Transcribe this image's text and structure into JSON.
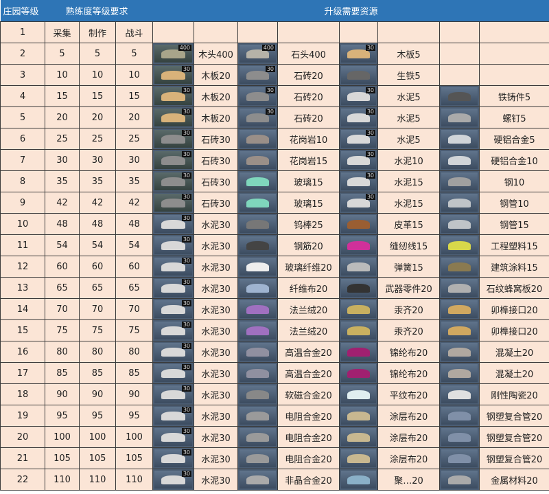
{
  "header": {
    "level": "庄园等级",
    "proficiency": "熟练度等级要求",
    "resources": "升级需要资源"
  },
  "subheader": {
    "level": "1",
    "gather": "采集",
    "craft": "制作",
    "combat": "战斗"
  },
  "rows": [
    {
      "level": "2",
      "gather": "5",
      "craft": "5",
      "combat": "5",
      "res": [
        {
          "icon": "wood-log-icon",
          "label": "木头400",
          "badge": "400"
        },
        {
          "icon": "stone-icon",
          "label": "石头400",
          "badge": "400"
        },
        {
          "icon": "wood-plank-icon",
          "label": "木板5",
          "badge": "30"
        }
      ]
    },
    {
      "level": "3",
      "gather": "10",
      "craft": "10",
      "combat": "10",
      "res": [
        {
          "icon": "wood-plank-icon",
          "label": "木板20",
          "badge": "30"
        },
        {
          "icon": "stone-brick-icon",
          "label": "石砖20",
          "badge": "30"
        },
        {
          "icon": "pig-iron-icon",
          "label": "生铁5"
        }
      ]
    },
    {
      "level": "4",
      "gather": "15",
      "craft": "15",
      "combat": "15",
      "res": [
        {
          "icon": "wood-plank-icon",
          "label": "木板20",
          "badge": "30"
        },
        {
          "icon": "stone-brick-icon",
          "label": "石砖20",
          "badge": "30"
        },
        {
          "icon": "cement-icon",
          "label": "水泥5",
          "badge": "30"
        },
        {
          "icon": "iron-casting-icon",
          "label": "铁铸件5"
        }
      ]
    },
    {
      "level": "5",
      "gather": "20",
      "craft": "20",
      "combat": "20",
      "res": [
        {
          "icon": "wood-plank-icon",
          "label": "木板20",
          "badge": "30"
        },
        {
          "icon": "stone-brick-icon",
          "label": "石砖20",
          "badge": "30"
        },
        {
          "icon": "cement-icon",
          "label": "水泥5",
          "badge": "30"
        },
        {
          "icon": "screw-icon",
          "label": "螺钉5"
        }
      ]
    },
    {
      "level": "6",
      "gather": "25",
      "craft": "25",
      "combat": "25",
      "res": [
        {
          "icon": "stone-brick-icon",
          "label": "石砖30",
          "badge": "30"
        },
        {
          "icon": "granite-icon",
          "label": "花岗岩10"
        },
        {
          "icon": "cement-icon",
          "label": "水泥5",
          "badge": "30"
        },
        {
          "icon": "duralumin-icon",
          "label": "硬铝合金5"
        }
      ]
    },
    {
      "level": "7",
      "gather": "30",
      "craft": "30",
      "combat": "30",
      "res": [
        {
          "icon": "stone-brick-icon",
          "label": "石砖30",
          "badge": "30"
        },
        {
          "icon": "granite-icon",
          "label": "花岗岩15"
        },
        {
          "icon": "cement-icon",
          "label": "水泥10",
          "badge": "30"
        },
        {
          "icon": "duralumin-icon",
          "label": "硬铝合金10"
        }
      ]
    },
    {
      "level": "8",
      "gather": "35",
      "craft": "35",
      "combat": "35",
      "res": [
        {
          "icon": "stone-brick-icon",
          "label": "石砖30",
          "badge": "30"
        },
        {
          "icon": "glass-icon",
          "label": "玻璃15"
        },
        {
          "icon": "cement-icon",
          "label": "水泥15",
          "badge": "30"
        },
        {
          "icon": "steel-icon",
          "label": "钢10"
        }
      ]
    },
    {
      "level": "9",
      "gather": "42",
      "craft": "42",
      "combat": "42",
      "res": [
        {
          "icon": "stone-brick-icon",
          "label": "石砖30",
          "badge": "30"
        },
        {
          "icon": "glass-icon",
          "label": "玻璃15"
        },
        {
          "icon": "cement-icon",
          "label": "水泥15",
          "badge": "30"
        },
        {
          "icon": "steel-pipe-icon",
          "label": "钢管10"
        }
      ]
    },
    {
      "level": "10",
      "gather": "48",
      "craft": "48",
      "combat": "48",
      "res": [
        {
          "icon": "cement-icon",
          "label": "水泥30",
          "badge": "30"
        },
        {
          "icon": "tungsten-rod-icon",
          "label": "钨棒25"
        },
        {
          "icon": "leather-icon",
          "label": "皮革15"
        },
        {
          "icon": "steel-pipe-icon",
          "label": "钢管15"
        }
      ]
    },
    {
      "level": "11",
      "gather": "54",
      "craft": "54",
      "combat": "54",
      "res": [
        {
          "icon": "cement-icon",
          "label": "水泥30",
          "badge": "30"
        },
        {
          "icon": "rebar-icon",
          "label": "钢筋20"
        },
        {
          "icon": "thread-icon",
          "label": "缝纫线15"
        },
        {
          "icon": "plastic-icon",
          "label": "工程塑料15"
        }
      ]
    },
    {
      "level": "12",
      "gather": "60",
      "craft": "60",
      "combat": "60",
      "res": [
        {
          "icon": "cement-icon",
          "label": "水泥30",
          "badge": "30"
        },
        {
          "icon": "fiberglass-icon",
          "label": "玻璃纤维20"
        },
        {
          "icon": "spring-icon",
          "label": "弹簧15"
        },
        {
          "icon": "paint-icon",
          "label": "建筑涂料15"
        }
      ]
    },
    {
      "level": "13",
      "gather": "65",
      "craft": "65",
      "combat": "65",
      "res": [
        {
          "icon": "cement-icon",
          "label": "水泥30",
          "badge": "30"
        },
        {
          "icon": "fiber-cloth-icon",
          "label": "纤维布20"
        },
        {
          "icon": "weapon-parts-icon",
          "label": "武器零件20"
        },
        {
          "icon": "honeycomb-panel-icon",
          "label": "石纹蜂窝板20"
        }
      ]
    },
    {
      "level": "14",
      "gather": "70",
      "craft": "70",
      "combat": "70",
      "res": [
        {
          "icon": "cement-icon",
          "label": "水泥30",
          "badge": "30"
        },
        {
          "icon": "flannel-icon",
          "label": "法兰绒20"
        },
        {
          "icon": "amalgam-icon",
          "label": "汞齐20"
        },
        {
          "icon": "joint-icon",
          "label": "卯榫接口20"
        }
      ]
    },
    {
      "level": "15",
      "gather": "75",
      "craft": "75",
      "combat": "75",
      "res": [
        {
          "icon": "cement-icon",
          "label": "水泥30",
          "badge": "30"
        },
        {
          "icon": "flannel-icon",
          "label": "法兰绒20"
        },
        {
          "icon": "amalgam-icon",
          "label": "汞齐20"
        },
        {
          "icon": "joint-icon",
          "label": "卯榫接口20"
        }
      ]
    },
    {
      "level": "16",
      "gather": "80",
      "craft": "80",
      "combat": "80",
      "res": [
        {
          "icon": "cement-icon",
          "label": "水泥30",
          "badge": "30"
        },
        {
          "icon": "superalloy-icon",
          "label": "高温合金20"
        },
        {
          "icon": "nylon-cloth-icon",
          "label": "锦纶布20"
        },
        {
          "icon": "concrete-icon",
          "label": "混凝土20"
        }
      ]
    },
    {
      "level": "17",
      "gather": "85",
      "craft": "85",
      "combat": "85",
      "res": [
        {
          "icon": "cement-icon",
          "label": "水泥30",
          "badge": "30"
        },
        {
          "icon": "superalloy-icon",
          "label": "高温合金20"
        },
        {
          "icon": "nylon-cloth-icon",
          "label": "锦纶布20"
        },
        {
          "icon": "concrete-icon",
          "label": "混凝土20"
        }
      ]
    },
    {
      "level": "18",
      "gather": "90",
      "craft": "90",
      "combat": "90",
      "res": [
        {
          "icon": "cement-icon",
          "label": "水泥30",
          "badge": "30"
        },
        {
          "icon": "soft-magnetic-alloy-icon",
          "label": "软磁合金20"
        },
        {
          "icon": "plain-cloth-icon",
          "label": "平纹布20"
        },
        {
          "icon": "ceramic-icon",
          "label": "刚性陶瓷20"
        }
      ]
    },
    {
      "level": "19",
      "gather": "95",
      "craft": "95",
      "combat": "95",
      "res": [
        {
          "icon": "cement-icon",
          "label": "水泥30",
          "badge": "30"
        },
        {
          "icon": "resistance-alloy-icon",
          "label": "电阻合金20"
        },
        {
          "icon": "coated-cloth-icon",
          "label": "涂层布20"
        },
        {
          "icon": "composite-pipe-icon",
          "label": "钢塑复合管20"
        }
      ]
    },
    {
      "level": "20",
      "gather": "100",
      "craft": "100",
      "combat": "100",
      "res": [
        {
          "icon": "cement-icon",
          "label": "水泥30",
          "badge": "30"
        },
        {
          "icon": "resistance-alloy-icon",
          "label": "电阻合金20"
        },
        {
          "icon": "coated-cloth-icon",
          "label": "涂层布20"
        },
        {
          "icon": "composite-pipe-icon",
          "label": "钢塑复合管20"
        }
      ]
    },
    {
      "level": "21",
      "gather": "105",
      "craft": "105",
      "combat": "105",
      "res": [
        {
          "icon": "cement-icon",
          "label": "水泥30",
          "badge": "30"
        },
        {
          "icon": "resistance-alloy-icon",
          "label": "电阻合金20"
        },
        {
          "icon": "coated-cloth-icon",
          "label": "涂层布20"
        },
        {
          "icon": "composite-pipe-icon",
          "label": "钢塑复合管20"
        }
      ]
    },
    {
      "level": "22",
      "gather": "110",
      "craft": "110",
      "combat": "110",
      "res": [
        {
          "icon": "cement-icon",
          "label": "水泥30",
          "badge": "30"
        },
        {
          "icon": "amorphous-alloy-icon",
          "label": "非晶合金20"
        },
        {
          "icon": "fabric-icon",
          "label": "聚…20"
        },
        {
          "icon": "metal-material-icon",
          "label": "金属材料20"
        }
      ]
    }
  ],
  "colors": {
    "header_bg": "#2e75b6",
    "cell_bg": "#fbe5d6",
    "icon_bg": "#4b5d73"
  }
}
